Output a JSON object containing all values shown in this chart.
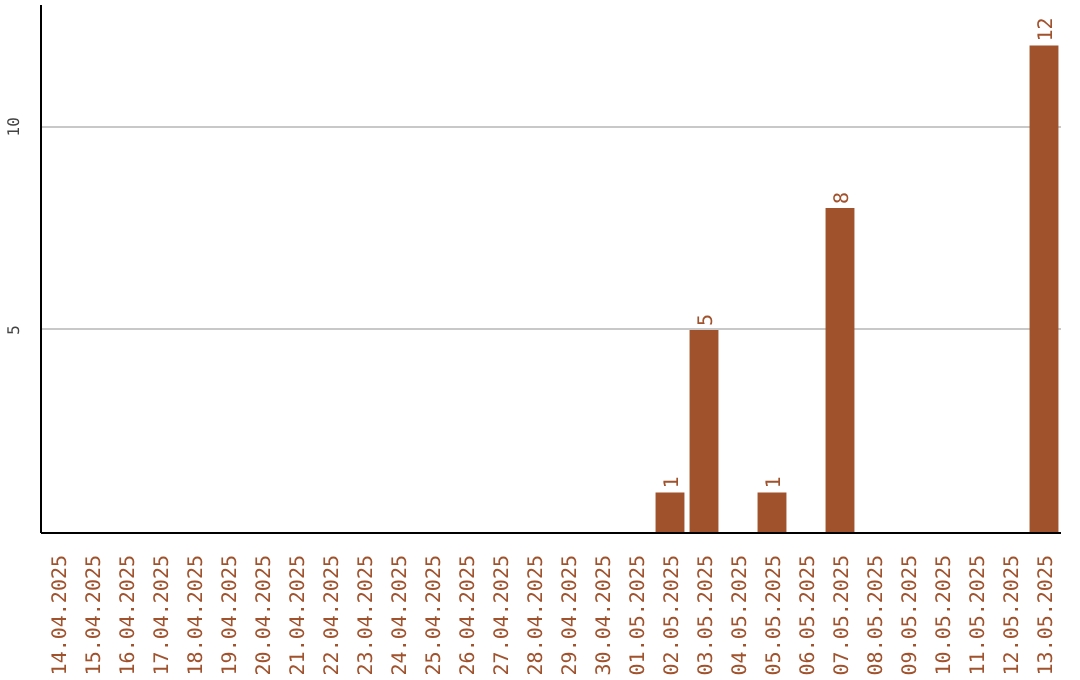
{
  "chart_data": {
    "type": "bar",
    "categories": [
      "14.04.2025",
      "15.04.2025",
      "16.04.2025",
      "17.04.2025",
      "18.04.2025",
      "19.04.2025",
      "20.04.2025",
      "21.04.2025",
      "22.04.2025",
      "23.04.2025",
      "24.04.2025",
      "25.04.2025",
      "26.04.2025",
      "27.04.2025",
      "28.04.2025",
      "29.04.2025",
      "30.04.2025",
      "01.05.2025",
      "02.05.2025",
      "03.05.2025",
      "04.05.2025",
      "05.05.2025",
      "06.05.2025",
      "07.05.2025",
      "08.05.2025",
      "09.05.2025",
      "10.05.2025",
      "11.05.2025",
      "12.05.2025",
      "13.05.2025"
    ],
    "values": [
      0,
      0,
      0,
      0,
      0,
      0,
      0,
      0,
      0,
      0,
      0,
      0,
      0,
      0,
      0,
      0,
      0,
      0,
      1,
      5,
      0,
      1,
      0,
      8,
      0,
      0,
      0,
      0,
      0,
      12
    ],
    "value_labels": [
      null,
      null,
      null,
      null,
      null,
      null,
      null,
      null,
      null,
      null,
      null,
      null,
      null,
      null,
      null,
      null,
      null,
      null,
      "1",
      "5",
      null,
      "1",
      null,
      "8",
      null,
      null,
      null,
      null,
      null,
      "12"
    ],
    "color": "#a0522d",
    "ylim": [
      0,
      13
    ],
    "yticks": [
      5,
      10
    ],
    "grid": "y",
    "legend": false
  }
}
